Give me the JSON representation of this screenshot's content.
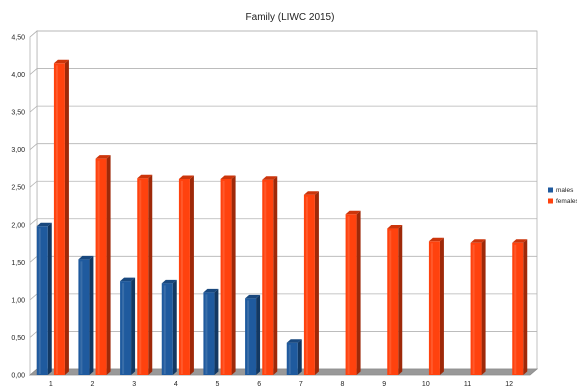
{
  "chart_data": {
    "type": "bar",
    "title": "Family (LIWC 2015)",
    "xlabel": "",
    "ylabel": "",
    "categories": [
      "1",
      "2",
      "3",
      "4",
      "5",
      "6",
      "7",
      "8",
      "9",
      "10",
      "11",
      "12"
    ],
    "series": [
      {
        "name": "males",
        "color": "#1f5a9e",
        "values": [
          1.98,
          1.54,
          1.25,
          1.22,
          1.1,
          1.02,
          0.43,
          null,
          null,
          null,
          null,
          null
        ]
      },
      {
        "name": "females",
        "color": "#ff420e",
        "values": [
          4.15,
          2.88,
          2.62,
          2.61,
          2.61,
          2.6,
          2.4,
          2.14,
          1.95,
          1.78,
          1.76,
          1.76
        ]
      }
    ],
    "ylim": [
      0,
      4.5
    ],
    "yticks": [
      "0,00",
      "0,50",
      "1,00",
      "1,50",
      "2,00",
      "2,50",
      "3,00",
      "3,50",
      "4,00",
      "4,50"
    ],
    "grid": true,
    "legend": "right"
  }
}
